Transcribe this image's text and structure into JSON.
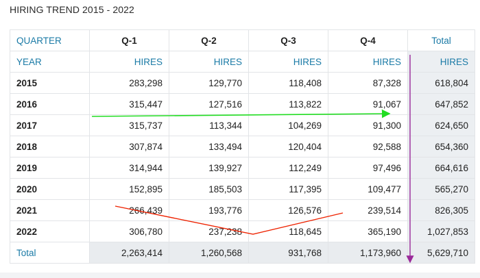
{
  "title": "HIRING TREND 2015 - 2022",
  "header": {
    "quarter_label": "QUARTER",
    "quarters": [
      "Q-1",
      "Q-2",
      "Q-3",
      "Q-4"
    ],
    "total_label": "Total"
  },
  "subheader": {
    "year_label": "YEAR",
    "hires_label": "HIRES"
  },
  "rows": [
    {
      "year": "2015",
      "q1": "283,298",
      "q2": "129,770",
      "q3": "118,408",
      "q4": "87,328",
      "total": "618,804"
    },
    {
      "year": "2016",
      "q1": "315,447",
      "q2": "127,516",
      "q3": "113,822",
      "q4": "91,067",
      "total": "647,852"
    },
    {
      "year": "2017",
      "q1": "315,737",
      "q2": "113,344",
      "q3": "104,269",
      "q4": "91,300",
      "total": "624,650"
    },
    {
      "year": "2018",
      "q1": "307,874",
      "q2": "133,494",
      "q3": "120,404",
      "q4": "92,588",
      "total": "654,360"
    },
    {
      "year": "2019",
      "q1": "314,944",
      "q2": "139,927",
      "q3": "112,249",
      "q4": "97,496",
      "total": "664,616"
    },
    {
      "year": "2020",
      "q1": "152,895",
      "q2": "185,503",
      "q3": "117,395",
      "q4": "109,477",
      "total": "565,270"
    },
    {
      "year": "2021",
      "q1": "266,439",
      "q2": "193,776",
      "q3": "126,576",
      "q4": "239,514",
      "total": "826,305"
    },
    {
      "year": "2022",
      "q1": "306,780",
      "q2": "237,238",
      "q3": "118,645",
      "q4": "365,190",
      "total": "1,027,853"
    }
  ],
  "totals": {
    "label": "Total",
    "q1": "2,263,414",
    "q2": "1,260,568",
    "q3": "931,768",
    "q4": "1,173,960",
    "total": "5,629,710"
  },
  "colors": {
    "teal_text": "#1a7aa6",
    "total_shade": "#eceff2",
    "green_arrow": "#22dd22",
    "red_line": "#ee2200",
    "purple_arrow": "#9a2a9a"
  }
}
